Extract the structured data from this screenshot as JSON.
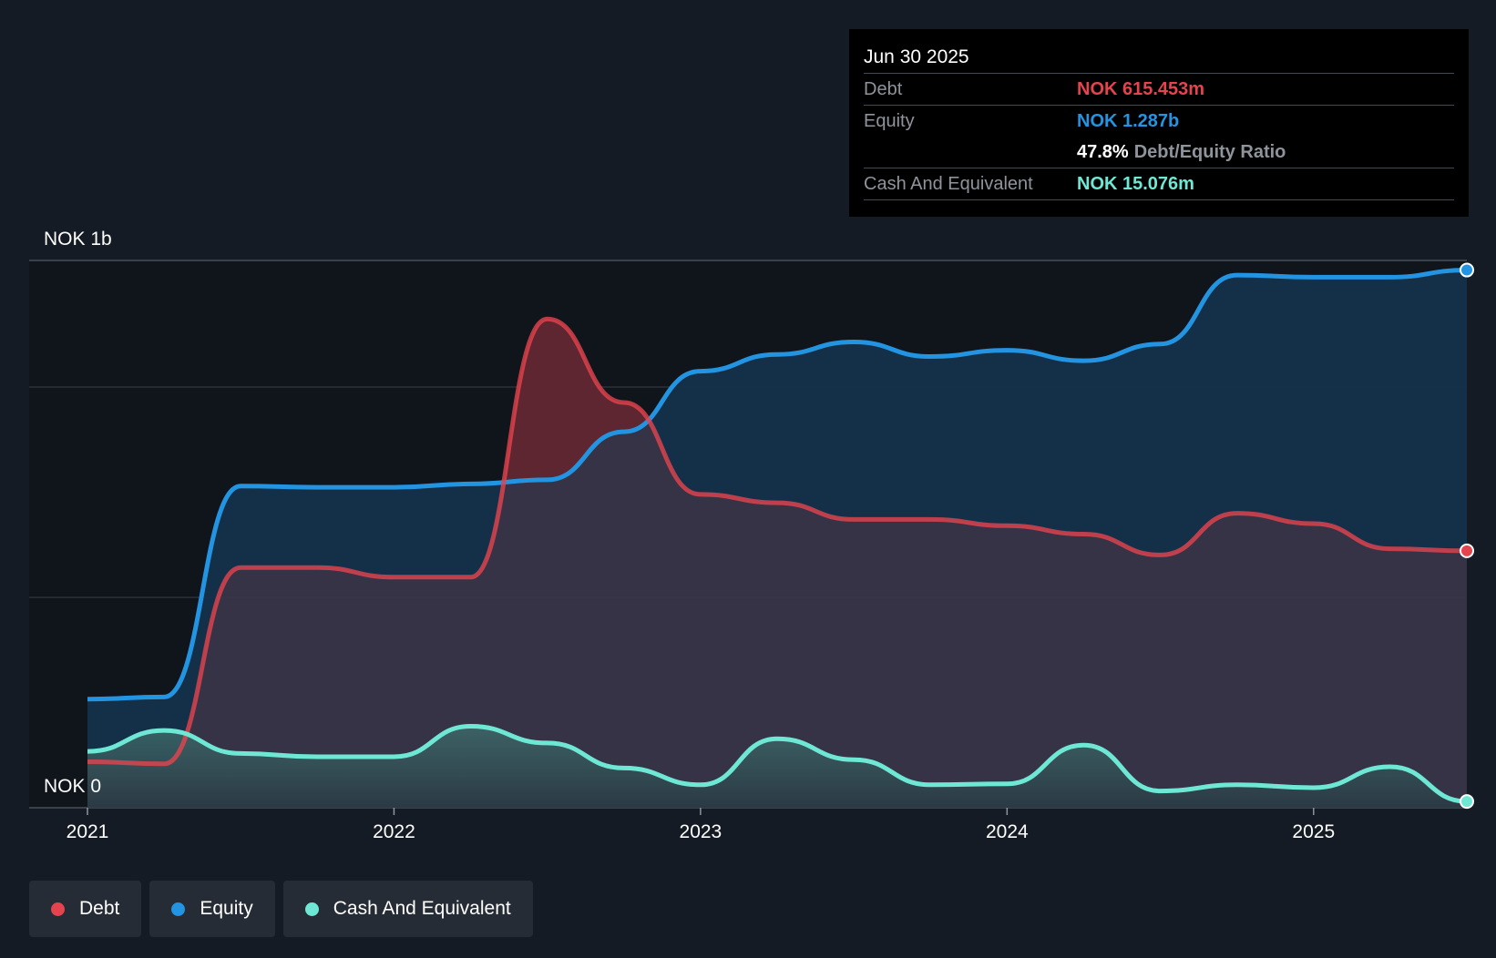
{
  "tooltip": {
    "date": "Jun 30 2025",
    "debt_label": "Debt",
    "debt_value": "NOK 615.453m",
    "equity_label": "Equity",
    "equity_value": "NOK 1.287b",
    "ratio_value": "47.8%",
    "ratio_label": "Debt/Equity Ratio",
    "cash_label": "Cash And Equivalent",
    "cash_value": "NOK 15.076m"
  },
  "legend": [
    {
      "label": "Debt",
      "color": "#e5434e"
    },
    {
      "label": "Equity",
      "color": "#2394e1"
    },
    {
      "label": "Cash And Equivalent",
      "color": "#6ee8d5"
    }
  ],
  "colors": {
    "debt": "#e5434e",
    "equity": "#2394e1",
    "cash": "#6ee8d5",
    "equity_fill": "#15324c",
    "debt_fill": "#3a3448",
    "debt_excess_fill": "#5e2630",
    "cash_fill": "#2f4d52"
  },
  "chart_data": {
    "type": "area",
    "title": "",
    "y_top_label": "NOK 1b",
    "y_bottom_label": "NOK 0",
    "x_ticks": [
      "2021",
      "2022",
      "2023",
      "2024",
      "2025"
    ],
    "x_tick_values": [
      2021.0,
      2022.0,
      2023.0,
      2024.0,
      2025.0
    ],
    "xlim": [
      2021.0,
      2025.5
    ],
    "ylim": [
      0,
      1310
    ],
    "series": [
      {
        "name": "Equity",
        "x": [
          2021.0,
          2021.25,
          2021.5,
          2021.75,
          2022.0,
          2022.25,
          2022.5,
          2022.75,
          2023.0,
          2023.25,
          2023.5,
          2023.75,
          2024.0,
          2024.25,
          2024.5,
          2024.75,
          2025.0,
          2025.25,
          2025.5
        ],
        "values": [
          260,
          265,
          770,
          767,
          767,
          775,
          785,
          900,
          1045,
          1085,
          1115,
          1080,
          1095,
          1070,
          1110,
          1275,
          1270,
          1270,
          1287
        ]
      },
      {
        "name": "Debt",
        "x": [
          2021.0,
          2021.25,
          2021.5,
          2021.75,
          2022.0,
          2022.25,
          2022.5,
          2022.75,
          2023.0,
          2023.25,
          2023.5,
          2023.75,
          2024.0,
          2024.25,
          2024.5,
          2024.75,
          2025.0,
          2025.25,
          2025.5
        ],
        "values": [
          110,
          105,
          575,
          575,
          552,
          552,
          1170,
          970,
          750,
          730,
          690,
          690,
          675,
          655,
          605,
          705,
          680,
          620,
          615
        ]
      },
      {
        "name": "Cash And Equivalent",
        "x": [
          2021.0,
          2021.25,
          2021.5,
          2021.75,
          2022.0,
          2022.25,
          2022.5,
          2022.75,
          2023.0,
          2023.25,
          2023.5,
          2023.75,
          2024.0,
          2024.25,
          2024.5,
          2024.75,
          2025.0,
          2025.25,
          2025.5
        ],
        "values": [
          135,
          185,
          130,
          122,
          122,
          195,
          155,
          95,
          55,
          165,
          115,
          55,
          57,
          150,
          40,
          55,
          48,
          98,
          15
        ]
      }
    ]
  }
}
